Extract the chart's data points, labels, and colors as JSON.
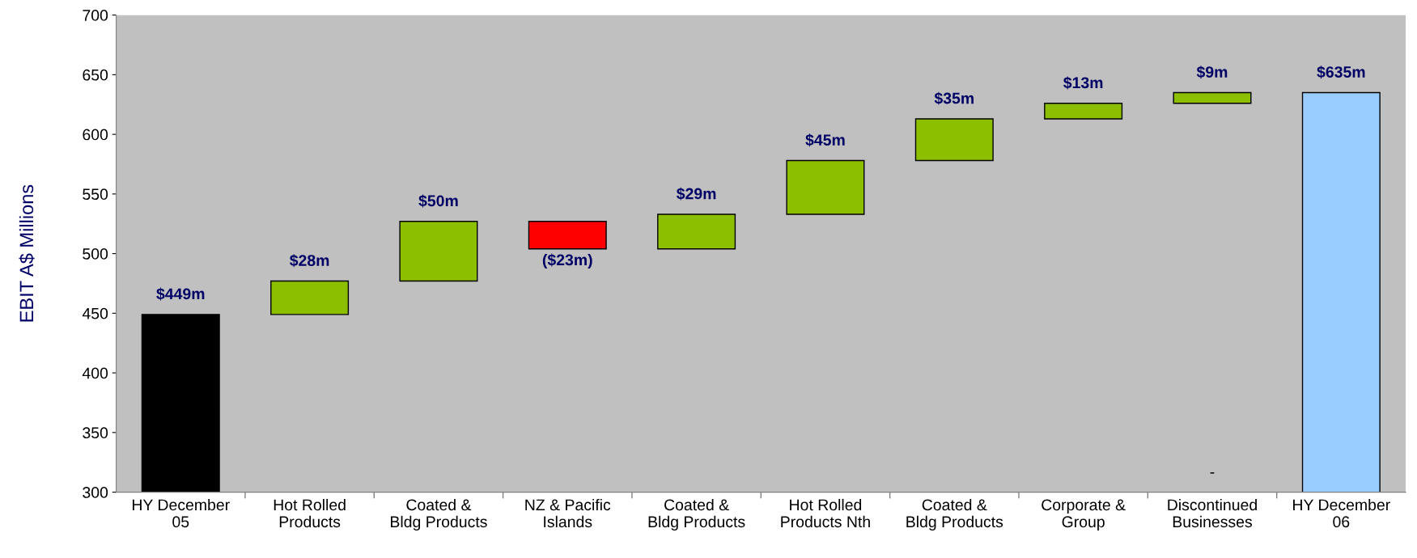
{
  "chart_data": {
    "type": "bar",
    "categories": [
      "HY December\n05",
      "Hot Rolled\nProducts",
      "Coated &\nBldg Products",
      "NZ & Pacific\nIslands",
      "Coated &\nBldg Products",
      "Hot Rolled\nProducts Nth",
      "Coated &\nBldg Products",
      "Corporate &\nGroup",
      "Discontinued\nBusinesses",
      "HY December\n06"
    ],
    "values": [
      449,
      28,
      50,
      -23,
      29,
      45,
      35,
      13,
      9,
      635
    ],
    "base": [
      0,
      449,
      477,
      527,
      504,
      533,
      578,
      613,
      626,
      0
    ],
    "colors": [
      "#000000",
      "#8cbf00",
      "#8cbf00",
      "#ff0000",
      "#8cbf00",
      "#8cbf00",
      "#8cbf00",
      "#8cbf00",
      "#8cbf00",
      "#99ccff"
    ],
    "value_labels": [
      "$449m",
      "$28m",
      "$50m",
      "($23m)",
      "$29m",
      "$45m",
      "$35m",
      "$13m",
      "$9m",
      "$635m"
    ],
    "ylabel": "EBIT A$ Millions",
    "ylim": [
      300,
      700
    ],
    "yticks": [
      300,
      350,
      400,
      450,
      500,
      550,
      600,
      650,
      700
    ],
    "annotations": [
      "-"
    ],
    "grid": false,
    "legend": false
  }
}
